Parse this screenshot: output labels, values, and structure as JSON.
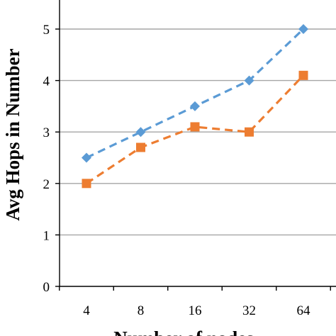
{
  "chart_data": {
    "type": "line",
    "x": [
      "4",
      "8",
      "16",
      "32",
      "64"
    ],
    "series": [
      {
        "values": [
          2.5,
          3.0,
          3.5,
          4.0,
          5.0
        ],
        "color": "#5b9bd5",
        "marker": "diamond",
        "line_style": "dashed"
      },
      {
        "values": [
          2.0,
          2.7,
          3.1,
          3.0,
          4.1
        ],
        "color": "#ed7d31",
        "marker": "square",
        "line_style": "dashed"
      }
    ],
    "ylabel": "Avg Hops in Number",
    "xlabel": "Number of nodes",
    "ylim": [
      0,
      5.5
    ],
    "yticks": [
      0,
      1,
      2,
      3,
      4,
      5
    ],
    "grid": true,
    "axis_color": "#000000",
    "grid_color": "#a6a6a6"
  }
}
